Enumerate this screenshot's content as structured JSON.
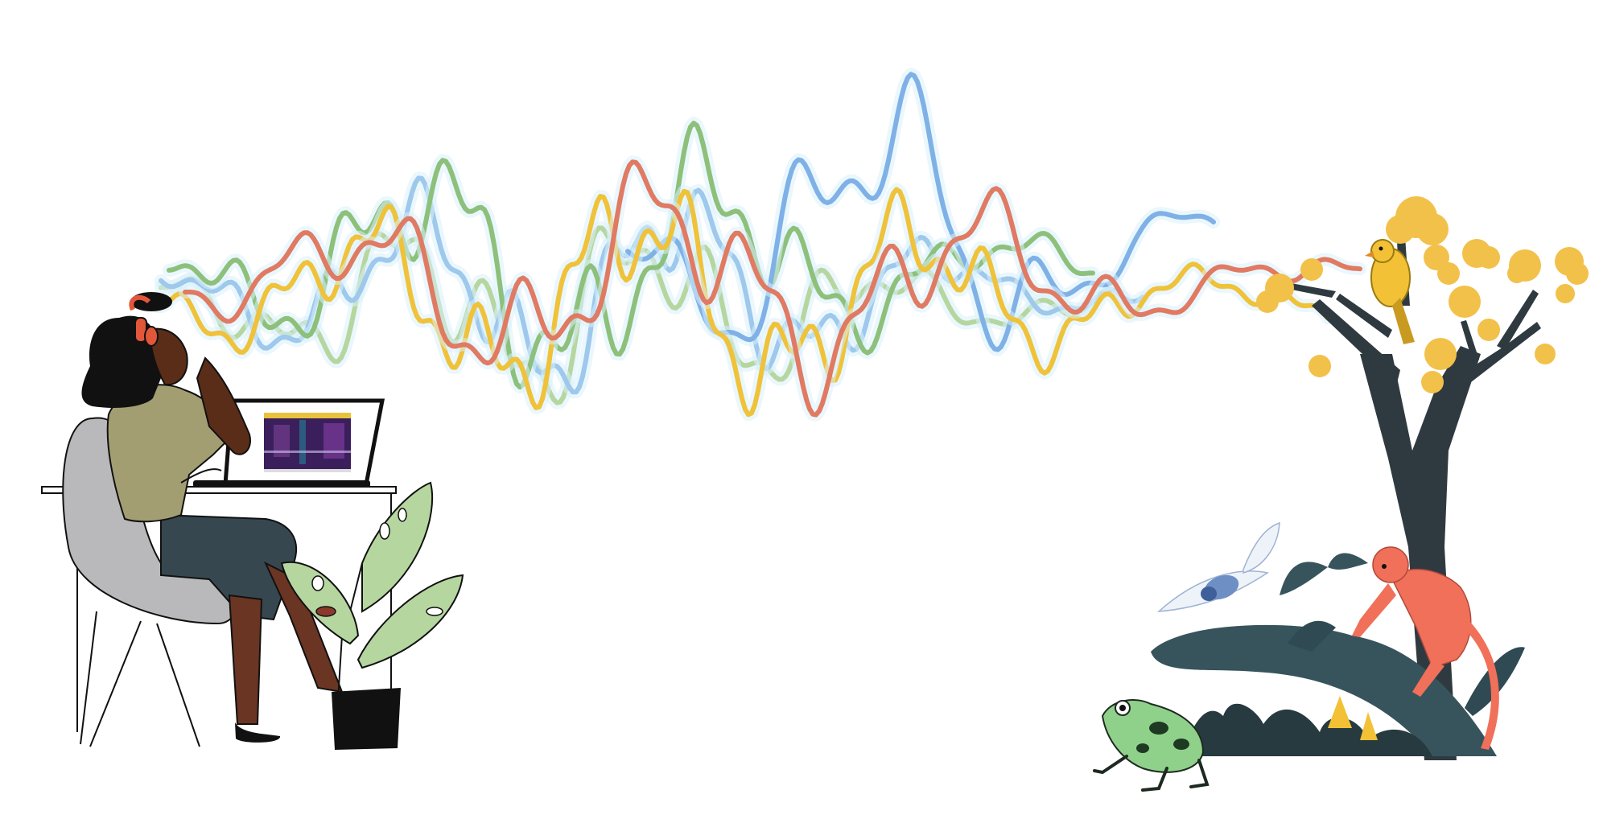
{
  "colors": {
    "background": "#ffffff",
    "wave_blue": "#7fb1e6",
    "wave_light_blue": "#9ec8ec",
    "wave_green": "#8dc07a",
    "wave_light_green": "#b6d6a0",
    "wave_yellow": "#efc23a",
    "wave_red": "#e07a62",
    "outline": "#111111"
  },
  "scene": {
    "left": {
      "figure": "person-listening-with-headphones",
      "props": [
        "chair",
        "desk",
        "laptop-spectrogram",
        "potted-plant"
      ]
    },
    "right": {
      "figure": "rainforest-wildlife",
      "props": [
        "tree-with-yellow-blossoms",
        "yellow-bird",
        "red-monkey",
        "cicada",
        "green-frog",
        "jungle-foliage"
      ]
    },
    "waves": [
      "wave_light_blue",
      "wave_green",
      "wave_yellow",
      "wave_red",
      "wave_blue"
    ]
  }
}
